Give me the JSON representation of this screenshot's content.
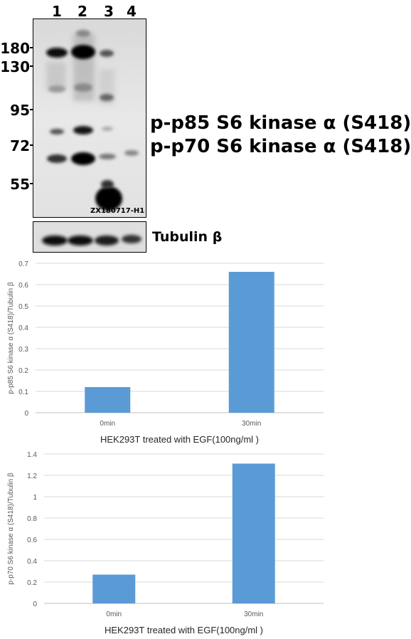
{
  "blot": {
    "lanes": [
      "1",
      "2",
      "3",
      "4"
    ],
    "markers": [
      "180",
      "130",
      "95",
      "72",
      "55"
    ],
    "targets": [
      "p-p85 S6 kinase α (S418)",
      "p-p70 S6 kinase α (S418)"
    ],
    "loading_control": "Tubulin β",
    "blot_id": "ZX180717-H1"
  },
  "chart_data": [
    {
      "type": "bar",
      "categories": [
        "0min",
        "30min"
      ],
      "values": [
        0.12,
        0.66
      ],
      "ylabel": "p-p85 S6 kinase α (S418)/Tubulin β",
      "xlabel": "HEK293T treated with EGF(100ng/ml )",
      "ylim": [
        0,
        0.7
      ],
      "yticks": [
        "0",
        "0.1",
        "0.2",
        "0.3",
        "0.4",
        "0.5",
        "0.6",
        "0.7"
      ],
      "grid": true,
      "bar_color": "#5b9bd5"
    },
    {
      "type": "bar",
      "categories": [
        "0min",
        "30min"
      ],
      "values": [
        0.27,
        1.31
      ],
      "ylabel": "p-p70 S6 kinase α (S418)/Tubulin β",
      "xlabel": "HEK293T treated with EGF(100ng/ml )",
      "ylim": [
        0,
        1.4
      ],
      "yticks": [
        "0",
        "0.2",
        "0.4",
        "0.6",
        "0.8",
        "1",
        "1.2",
        "1.4"
      ],
      "grid": true,
      "bar_color": "#5b9bd5"
    }
  ]
}
